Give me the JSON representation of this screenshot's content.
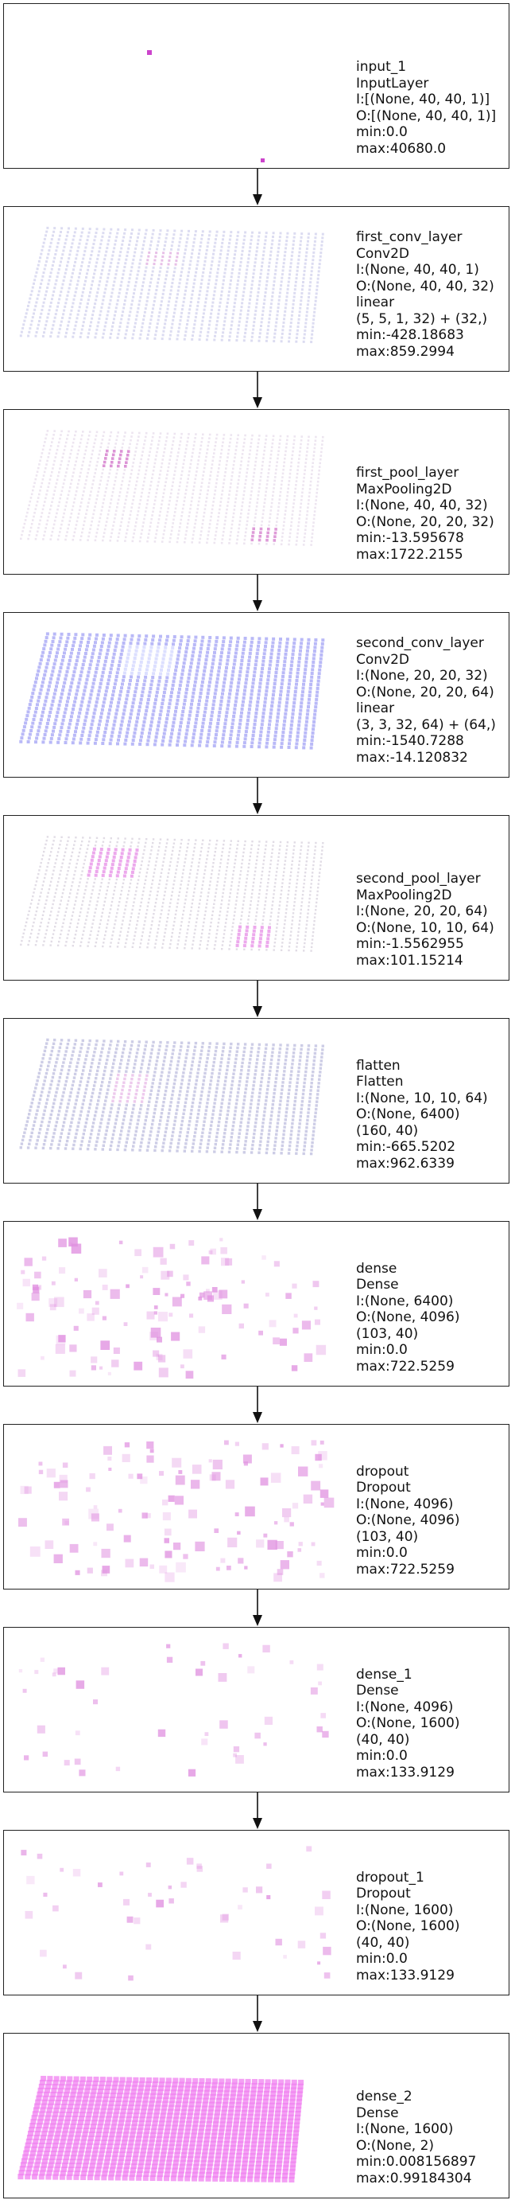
{
  "layers": [
    {
      "name": "input_1",
      "type": "InputLayer",
      "lines": [
        "input_1",
        "InputLayer",
        "I:[(None, 40, 40, 1)]",
        "O:[(None, 40, 40, 1)]",
        "min:0.0",
        "max:40680.0"
      ],
      "viz": "sparse-dots",
      "color": "#cc44cc"
    },
    {
      "name": "first_conv_layer",
      "type": "Conv2D",
      "lines": [
        "first_conv_layer",
        "Conv2D",
        "I:(None, 40, 40, 1)",
        "O:(None, 40, 40, 32)",
        "linear",
        "(5, 5, 1, 32) + (32,)",
        "min:-428.18683",
        "max:859.2994"
      ],
      "viz": "grid-light",
      "color": "#9a9ad6"
    },
    {
      "name": "first_pool_layer",
      "type": "MaxPooling2D",
      "lines": [
        "first_pool_layer",
        "MaxPooling2D",
        "I:(None, 40, 40, 32)",
        "O:(None, 20, 20, 32)",
        "min:-13.595678",
        "max:1722.2155"
      ],
      "viz": "grid-faint-pink",
      "color": "#d070c8"
    },
    {
      "name": "second_conv_layer",
      "type": "Conv2D",
      "lines": [
        "second_conv_layer",
        "Conv2D",
        "I:(None, 20, 20, 32)",
        "O:(None, 20, 20, 64)",
        "linear",
        "(3, 3, 32, 64) + (64,)",
        "min:-1540.7288",
        "max:-14.120832"
      ],
      "viz": "grid-blue",
      "color": "#7f7ff0"
    },
    {
      "name": "second_pool_layer",
      "type": "MaxPooling2D",
      "lines": [
        "second_pool_layer",
        "MaxPooling2D",
        "I:(None, 20, 20, 64)",
        "O:(None, 10, 10, 64)",
        "min:-1.5562955",
        "max:101.15214"
      ],
      "viz": "grid-faint-pink2",
      "color": "#e070e0"
    },
    {
      "name": "flatten",
      "type": "Flatten",
      "lines": [
        "flatten",
        "Flatten",
        "I:(None, 10, 10, 64)",
        "O:(None, 6400)",
        "(160, 40)",
        "min:-665.5202",
        "max:962.6339"
      ],
      "viz": "grid-lavender",
      "color": "#9090c8"
    },
    {
      "name": "dense",
      "type": "Dense",
      "lines": [
        "dense",
        "Dense",
        "I:(None, 6400)",
        "O:(None, 4096)",
        "(103, 40)",
        "min:0.0",
        "max:722.5259"
      ],
      "viz": "scatter-dense",
      "color": "#e090e0"
    },
    {
      "name": "dropout",
      "type": "Dropout",
      "lines": [
        "dropout",
        "Dropout",
        "I:(None, 4096)",
        "O:(None, 4096)",
        "(103, 40)",
        "min:0.0",
        "max:722.5259"
      ],
      "viz": "scatter-dense",
      "color": "#e090e0"
    },
    {
      "name": "dense_1",
      "type": "Dense",
      "lines": [
        "dense_1",
        "Dense",
        "I:(None, 4096)",
        "O:(None, 1600)",
        "(40, 40)",
        "min:0.0",
        "max:133.9129"
      ],
      "viz": "scatter-sparse",
      "color": "#e090e0"
    },
    {
      "name": "dropout_1",
      "type": "Dropout",
      "lines": [
        "dropout_1",
        "Dropout",
        "I:(None, 1600)",
        "O:(None, 1600)",
        "(40, 40)",
        "min:0.0",
        "max:133.9129"
      ],
      "viz": "scatter-sparse",
      "color": "#e090e0"
    },
    {
      "name": "dense_2",
      "type": "Dense",
      "lines": [
        "dense_2",
        "Dense",
        "I:(None, 1600)",
        "O:(None, 2)",
        "min:0.008156897",
        "max:0.99184304"
      ],
      "viz": "grid-magenta",
      "color": "#f080f0"
    }
  ]
}
